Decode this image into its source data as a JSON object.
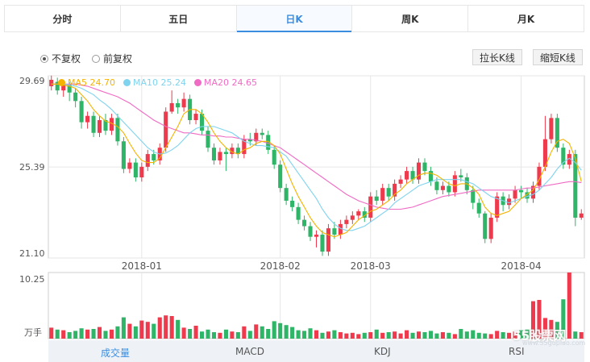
{
  "tabs": [
    {
      "label": "分时",
      "active": false
    },
    {
      "label": "五日",
      "active": false
    },
    {
      "label": "日K",
      "active": true
    },
    {
      "label": "周K",
      "active": false
    },
    {
      "label": "月K",
      "active": false
    }
  ],
  "radios": [
    {
      "label": "不复权",
      "checked": true
    },
    {
      "label": "前复权",
      "checked": false
    }
  ],
  "buttons": {
    "longer": "拉长K线",
    "shorter": "缩短K线"
  },
  "legend": [
    {
      "label": "MA5 24.70",
      "color": "#f5b300"
    },
    {
      "label": "MA10 25.24",
      "color": "#7fd3ef"
    },
    {
      "label": "MA20 24.65",
      "color": "#f06bc4"
    }
  ],
  "indicators": [
    {
      "label": "成交量",
      "active": true
    },
    {
      "label": "MACD",
      "active": false
    },
    {
      "label": "KDJ",
      "active": false
    },
    {
      "label": "RSI",
      "active": false
    }
  ],
  "watermark": {
    "main": "55股票网",
    "sub": "www.55gupiao.com"
  },
  "colors": {
    "up": "#ee3a4c",
    "down": "#2fb567",
    "ma5": "#f5b300",
    "ma10": "#7fd3ef",
    "ma20": "#f06bc4",
    "grid": "#e6e6e6",
    "axis": "#cfcfcf"
  },
  "chart_data": {
    "type": "candlestick",
    "price_axis": {
      "ticks": [
        "29.69",
        "25.39",
        "21.10"
      ],
      "ylim": [
        21.1,
        29.69
      ]
    },
    "volume_axis": {
      "ticks": [
        "10.25",
        "万手"
      ],
      "ylim": [
        0,
        10.25
      ]
    },
    "x_ticks": [
      {
        "label": "2018-01",
        "index": 15
      },
      {
        "label": "2018-02",
        "index": 38
      },
      {
        "label": "2018-03",
        "index": 53
      },
      {
        "label": "2018-04",
        "index": 78
      }
    ],
    "candles": [
      [
        29.2,
        29.5,
        29.7,
        29.0
      ],
      [
        29.4,
        29.0,
        29.6,
        28.8
      ],
      [
        29.0,
        29.3,
        29.5,
        28.7
      ],
      [
        29.3,
        28.9,
        29.4,
        28.5
      ],
      [
        28.9,
        28.5,
        29.1,
        28.2
      ],
      [
        28.5,
        27.5,
        28.7,
        27.2
      ],
      [
        27.5,
        27.8,
        28.0,
        27.2
      ],
      [
        27.8,
        27.0,
        28.0,
        26.8
      ],
      [
        27.0,
        27.6,
        27.8,
        26.8
      ],
      [
        27.6,
        27.1,
        27.9,
        26.9
      ],
      [
        27.1,
        27.7,
        27.9,
        26.9
      ],
      [
        27.7,
        26.6,
        27.9,
        26.4
      ],
      [
        26.6,
        25.3,
        26.8,
        25.1
      ],
      [
        25.3,
        25.6,
        25.8,
        25.1
      ],
      [
        25.6,
        24.9,
        25.8,
        24.7
      ],
      [
        24.9,
        25.4,
        25.6,
        24.7
      ],
      [
        25.4,
        26.0,
        26.2,
        25.2
      ],
      [
        26.0,
        25.7,
        26.2,
        25.5
      ],
      [
        25.7,
        26.3,
        26.5,
        25.5
      ],
      [
        26.3,
        28.0,
        28.2,
        26.1
      ],
      [
        28.0,
        28.4,
        29.0,
        27.9
      ],
      [
        28.4,
        28.2,
        28.6,
        27.9
      ],
      [
        28.2,
        28.6,
        28.9,
        28.0
      ],
      [
        28.6,
        27.6,
        28.8,
        27.4
      ],
      [
        27.6,
        27.9,
        28.1,
        27.4
      ],
      [
        27.9,
        27.1,
        28.1,
        26.9
      ],
      [
        27.1,
        26.3,
        27.3,
        26.1
      ],
      [
        26.3,
        25.7,
        26.5,
        25.5
      ],
      [
        25.7,
        26.1,
        26.3,
        25.5
      ],
      [
        26.1,
        26.0,
        26.3,
        25.2
      ],
      [
        26.0,
        26.3,
        26.5,
        25.8
      ],
      [
        26.3,
        26.0,
        26.5,
        25.8
      ],
      [
        26.0,
        26.7,
        26.9,
        25.8
      ],
      [
        26.7,
        26.6,
        27.0,
        26.4
      ],
      [
        26.6,
        27.0,
        27.2,
        26.4
      ],
      [
        27.0,
        26.9,
        27.2,
        26.7
      ],
      [
        26.9,
        26.2,
        27.1,
        26.0
      ],
      [
        26.2,
        25.5,
        26.4,
        25.3
      ],
      [
        25.5,
        24.4,
        25.7,
        24.2
      ],
      [
        24.4,
        23.8,
        24.6,
        23.6
      ],
      [
        23.8,
        23.5,
        24.0,
        23.3
      ],
      [
        23.5,
        22.9,
        23.7,
        22.7
      ],
      [
        22.9,
        22.6,
        23.1,
        22.4
      ],
      [
        22.6,
        22.1,
        22.8,
        21.9
      ],
      [
        22.1,
        22.2,
        22.4,
        21.6
      ],
      [
        22.2,
        21.4,
        22.4,
        21.2
      ],
      [
        21.4,
        22.5,
        22.7,
        21.2
      ],
      [
        22.5,
        22.2,
        22.8,
        22.0
      ],
      [
        22.2,
        22.7,
        22.9,
        22.0
      ],
      [
        22.7,
        22.9,
        23.1,
        22.5
      ],
      [
        22.9,
        23.1,
        23.3,
        22.7
      ],
      [
        23.1,
        23.3,
        23.4,
        22.9
      ],
      [
        23.3,
        23.0,
        23.5,
        22.8
      ],
      [
        23.0,
        24.0,
        24.2,
        22.8
      ],
      [
        24.0,
        23.8,
        24.3,
        23.6
      ],
      [
        23.8,
        24.4,
        24.6,
        23.6
      ],
      [
        24.4,
        24.0,
        24.6,
        23.8
      ],
      [
        24.0,
        24.6,
        24.8,
        23.8
      ],
      [
        24.6,
        24.8,
        25.0,
        24.4
      ],
      [
        24.8,
        25.2,
        25.4,
        24.6
      ],
      [
        25.2,
        24.8,
        25.4,
        24.6
      ],
      [
        24.8,
        25.6,
        25.8,
        24.6
      ],
      [
        25.6,
        25.2,
        25.8,
        25.0
      ],
      [
        25.2,
        24.7,
        25.4,
        24.5
      ],
      [
        24.7,
        24.3,
        24.9,
        24.1
      ],
      [
        24.3,
        24.5,
        24.7,
        24.1
      ],
      [
        24.5,
        24.2,
        24.7,
        24.0
      ],
      [
        24.2,
        25.0,
        25.2,
        24.0
      ],
      [
        25.0,
        24.9,
        25.3,
        24.7
      ],
      [
        24.9,
        24.3,
        25.1,
        24.1
      ],
      [
        24.3,
        23.7,
        24.5,
        23.4
      ],
      [
        23.7,
        23.2,
        23.9,
        23.0
      ],
      [
        23.2,
        22.0,
        23.3,
        21.8
      ],
      [
        22.0,
        23.0,
        23.2,
        21.8
      ],
      [
        23.0,
        24.0,
        24.2,
        22.8
      ],
      [
        24.0,
        23.6,
        24.2,
        23.3
      ],
      [
        23.6,
        23.9,
        24.1,
        23.4
      ],
      [
        23.9,
        24.3,
        24.5,
        23.7
      ],
      [
        24.3,
        24.2,
        24.5,
        23.9
      ],
      [
        24.2,
        23.9,
        24.4,
        23.7
      ],
      [
        23.9,
        24.5,
        24.7,
        23.7
      ],
      [
        24.5,
        25.4,
        25.6,
        24.3
      ],
      [
        25.4,
        26.7,
        27.8,
        25.2
      ],
      [
        26.7,
        27.7,
        27.9,
        26.5
      ],
      [
        27.7,
        26.3,
        27.9,
        26.1
      ],
      [
        26.3,
        25.5,
        26.5,
        25.3
      ],
      [
        25.5,
        26.0,
        26.2,
        25.3
      ],
      [
        26.0,
        23.0,
        26.2,
        22.6
      ],
      [
        23.0,
        23.2,
        23.4,
        22.9
      ]
    ],
    "ma5": [
      29.3,
      29.3,
      29.25,
      29.2,
      29.1,
      28.8,
      28.5,
      28.1,
      27.8,
      27.55,
      27.45,
      27.3,
      27.0,
      26.5,
      26.05,
      25.7,
      25.6,
      25.6,
      25.8,
      26.3,
      26.8,
      27.3,
      27.9,
      28.1,
      28.1,
      27.9,
      27.5,
      27.0,
      26.6,
      26.3,
      26.1,
      26.0,
      26.2,
      26.3,
      26.5,
      26.6,
      26.6,
      26.4,
      26.0,
      25.3,
      24.6,
      24.0,
      23.5,
      23.0,
      22.6,
      22.3,
      22.2,
      22.1,
      22.2,
      22.3,
      22.6,
      22.9,
      23.1,
      23.3,
      23.4,
      23.6,
      23.8,
      24.1,
      24.3,
      24.6,
      24.8,
      25.0,
      25.1,
      25.1,
      25.0,
      24.8,
      24.6,
      24.5,
      24.6,
      24.6,
      24.4,
      24.1,
      23.5,
      23.2,
      23.1,
      23.2,
      23.3,
      23.6,
      23.9,
      24.1,
      24.3,
      24.8,
      25.4,
      26.1,
      26.6,
      26.7,
      26.5,
      25.8,
      24.7
    ],
    "ma10": [
      29.3,
      29.3,
      29.3,
      29.25,
      29.2,
      29.1,
      28.95,
      28.8,
      28.55,
      28.35,
      28.1,
      27.8,
      27.5,
      27.2,
      26.9,
      26.6,
      26.3,
      26.1,
      26.0,
      26.05,
      26.2,
      26.4,
      26.7,
      27.0,
      27.2,
      27.3,
      27.3,
      27.3,
      27.2,
      27.1,
      27.0,
      26.8,
      26.6,
      26.5,
      26.4,
      26.4,
      26.35,
      26.3,
      26.1,
      25.9,
      25.5,
      25.1,
      24.7,
      24.3,
      23.9,
      23.4,
      23.0,
      22.7,
      22.5,
      22.4,
      22.4,
      22.5,
      22.6,
      22.8,
      23.0,
      23.2,
      23.4,
      23.7,
      23.9,
      24.1,
      24.3,
      24.5,
      24.6,
      24.7,
      24.8,
      24.8,
      24.8,
      24.8,
      24.8,
      24.7,
      24.6,
      24.4,
      24.2,
      24.0,
      23.9,
      23.8,
      23.7,
      23.8,
      23.9,
      24.0,
      24.1,
      24.3,
      24.6,
      24.9,
      25.3,
      25.6,
      25.8,
      25.6,
      25.24
    ],
    "ma20": [
      29.3,
      29.3,
      29.3,
      29.3,
      29.3,
      29.25,
      29.2,
      29.1,
      29.0,
      28.9,
      28.8,
      28.7,
      28.55,
      28.4,
      28.2,
      28.0,
      27.8,
      27.6,
      27.45,
      27.3,
      27.2,
      27.1,
      27.0,
      27.0,
      26.95,
      26.9,
      26.9,
      26.85,
      26.85,
      26.8,
      26.8,
      26.75,
      26.7,
      26.7,
      26.65,
      26.6,
      26.5,
      26.4,
      26.3,
      26.1,
      25.9,
      25.7,
      25.5,
      25.3,
      25.1,
      24.9,
      24.7,
      24.5,
      24.3,
      24.1,
      23.95,
      23.8,
      23.7,
      23.6,
      23.5,
      23.45,
      23.4,
      23.4,
      23.4,
      23.45,
      23.5,
      23.6,
      23.7,
      23.8,
      23.9,
      24.0,
      24.05,
      24.1,
      24.15,
      24.2,
      24.25,
      24.3,
      24.3,
      24.3,
      24.3,
      24.3,
      24.3,
      24.3,
      24.35,
      24.4,
      24.4,
      24.45,
      24.5,
      24.55,
      24.6,
      24.65,
      24.7,
      24.7,
      24.65
    ],
    "volume": [
      1.7,
      1.4,
      1.3,
      1.0,
      1.2,
      1.6,
      1.4,
      1.5,
      1.8,
      1.2,
      1.4,
      1.9,
      3.3,
      2.3,
      1.9,
      2.8,
      2.6,
      2.3,
      3.3,
      3.6,
      3.5,
      2.9,
      1.7,
      1.5,
      2.0,
      1.1,
      1.4,
      1.0,
      0.9,
      1.4,
      1.1,
      1.0,
      1.9,
      1.2,
      2.2,
      1.9,
      1.5,
      2.7,
      2.4,
      2.1,
      1.8,
      1.3,
      1.2,
      1.6,
      1.3,
      0.9,
      1.1,
      1.3,
      1.0,
      0.8,
      0.9,
      0.7,
      0.9,
      1.0,
      1.4,
      0.9,
      1.0,
      1.1,
      0.8,
      1.3,
      0.9,
      1.1,
      1.0,
      1.2,
      0.8,
      1.0,
      0.9,
      0.7,
      1.5,
      1.1,
      1.3,
      0.9,
      0.8,
      0.7,
      1.2,
      1.0,
      0.9,
      1.1,
      1.3,
      1.4,
      5.8,
      6.0,
      3.2,
      2.9,
      2.6,
      6.1,
      10.25,
      1.1,
      1.0
    ]
  }
}
